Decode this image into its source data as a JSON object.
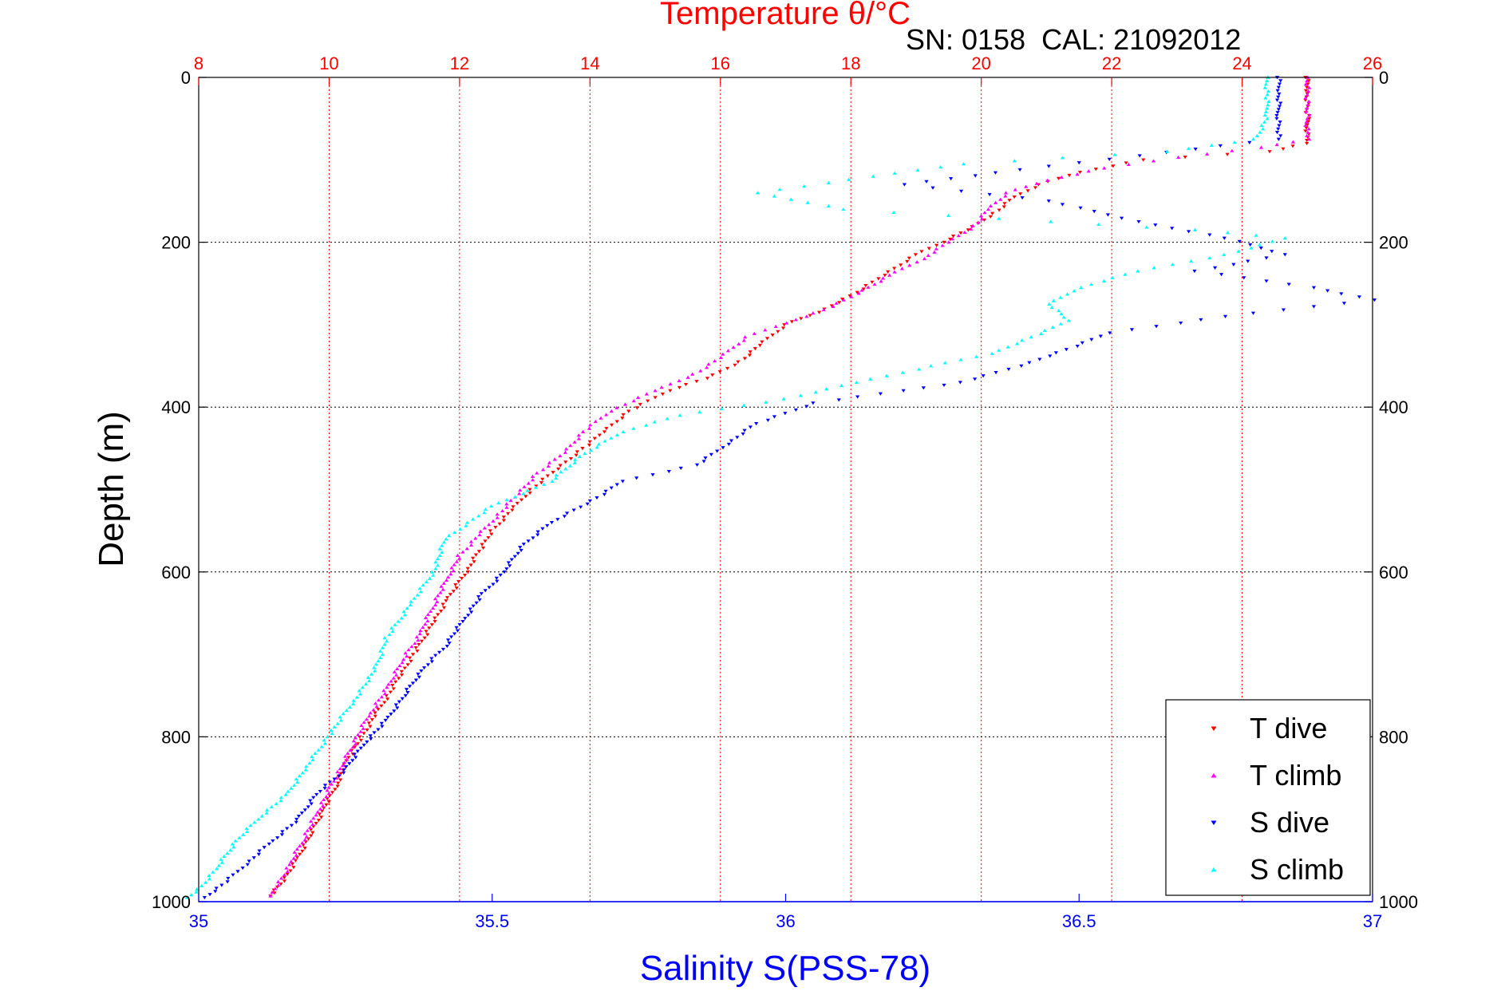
{
  "chart_data": {
    "type": "scatter",
    "top_axis": {
      "title": "Temperature θ/°C",
      "range": [
        8,
        26
      ],
      "ticks": [
        "8",
        "10",
        "12",
        "14",
        "16",
        "18",
        "20",
        "22",
        "24",
        "26"
      ],
      "color": "#ff0000"
    },
    "bottom_axis": {
      "title": "Salinity S(PSS-78)",
      "range": [
        35,
        37
      ],
      "ticks": [
        "35",
        "35.5",
        "36",
        "36.5",
        "37"
      ],
      "color": "#0000ff"
    },
    "y_axis": {
      "title": "Depth (m)",
      "range": [
        0,
        1000
      ],
      "reversed": true,
      "ticks": [
        "0",
        "200",
        "400",
        "600",
        "800",
        "1000"
      ]
    },
    "annotation": "SN: 0158  CAL: 21092012",
    "grid": true,
    "legend_position": "bottom-right",
    "series": [
      {
        "name": "T dive",
        "axis": "top",
        "color": "#ff0000",
        "marker": "triangle-down",
        "points": [
          [
            25.0,
            0
          ],
          [
            25.0,
            20
          ],
          [
            25.0,
            50
          ],
          [
            25.0,
            80
          ],
          [
            24.4,
            90
          ],
          [
            22.5,
            100
          ],
          [
            21.5,
            115
          ],
          [
            20.9,
            130
          ],
          [
            20.5,
            145
          ],
          [
            20.2,
            165
          ],
          [
            19.8,
            185
          ],
          [
            19.4,
            200
          ],
          [
            19.0,
            215
          ],
          [
            18.5,
            240
          ],
          [
            18.0,
            265
          ],
          [
            17.5,
            285
          ],
          [
            17.0,
            300
          ],
          [
            16.6,
            325
          ],
          [
            16.3,
            345
          ],
          [
            15.8,
            365
          ],
          [
            15.2,
            380
          ],
          [
            14.6,
            405
          ],
          [
            14.2,
            430
          ],
          [
            13.9,
            450
          ],
          [
            13.5,
            475
          ],
          [
            13.1,
            500
          ],
          [
            12.8,
            525
          ],
          [
            12.5,
            550
          ],
          [
            12.3,
            575
          ],
          [
            12.1,
            600
          ],
          [
            11.8,
            635
          ],
          [
            11.6,
            660
          ],
          [
            11.3,
            700
          ],
          [
            11.1,
            725
          ],
          [
            10.9,
            750
          ],
          [
            10.7,
            775
          ],
          [
            10.5,
            800
          ],
          [
            10.3,
            825
          ],
          [
            10.1,
            860
          ],
          [
            9.9,
            890
          ],
          [
            9.7,
            920
          ],
          [
            9.5,
            950
          ],
          [
            9.3,
            975
          ],
          [
            9.1,
            993
          ]
        ]
      },
      {
        "name": "T climb",
        "axis": "top",
        "color": "#ff00ff",
        "marker": "triangle-up",
        "points": [
          [
            25.0,
            0
          ],
          [
            25.0,
            25
          ],
          [
            25.0,
            50
          ],
          [
            25.0,
            75
          ],
          [
            24.3,
            85
          ],
          [
            23.0,
            97
          ],
          [
            21.9,
            110
          ],
          [
            21.0,
            125
          ],
          [
            20.4,
            140
          ],
          [
            20.1,
            160
          ],
          [
            19.9,
            180
          ],
          [
            19.5,
            200
          ],
          [
            19.1,
            220
          ],
          [
            18.6,
            240
          ],
          [
            18.1,
            262
          ],
          [
            17.6,
            282
          ],
          [
            17.0,
            298
          ],
          [
            16.4,
            315
          ],
          [
            16.0,
            340
          ],
          [
            15.6,
            360
          ],
          [
            15.0,
            380
          ],
          [
            14.3,
            405
          ],
          [
            13.9,
            430
          ],
          [
            13.6,
            455
          ],
          [
            13.2,
            480
          ],
          [
            12.9,
            505
          ],
          [
            12.6,
            530
          ],
          [
            12.3,
            555
          ],
          [
            12.0,
            580
          ],
          [
            11.8,
            610
          ],
          [
            11.6,
            640
          ],
          [
            11.4,
            675
          ],
          [
            11.1,
            710
          ],
          [
            10.9,
            740
          ],
          [
            10.6,
            775
          ],
          [
            10.4,
            805
          ],
          [
            10.2,
            835
          ],
          [
            10.0,
            865
          ],
          [
            9.8,
            895
          ],
          [
            9.6,
            925
          ],
          [
            9.4,
            955
          ],
          [
            9.2,
            980
          ],
          [
            9.1,
            993
          ]
        ]
      },
      {
        "name": "S dive",
        "axis": "bottom",
        "color": "#0000ff",
        "marker": "triangle-down",
        "points": [
          [
            36.84,
            0
          ],
          [
            36.84,
            20
          ],
          [
            36.84,
            50
          ],
          [
            36.84,
            75
          ],
          [
            36.6,
            95
          ],
          [
            36.4,
            112
          ],
          [
            36.2,
            130
          ],
          [
            36.45,
            150
          ],
          [
            36.6,
            175
          ],
          [
            36.75,
            195
          ],
          [
            36.85,
            215
          ],
          [
            36.7,
            235
          ],
          [
            36.9,
            255
          ],
          [
            37.0,
            270
          ],
          [
            36.75,
            290
          ],
          [
            36.55,
            310
          ],
          [
            36.48,
            330
          ],
          [
            36.4,
            350
          ],
          [
            36.3,
            370
          ],
          [
            36.2,
            380
          ],
          [
            36.05,
            395
          ],
          [
            35.95,
            420
          ],
          [
            35.9,
            445
          ],
          [
            35.85,
            470
          ],
          [
            35.72,
            490
          ],
          [
            35.68,
            510
          ],
          [
            35.6,
            540
          ],
          [
            35.55,
            570
          ],
          [
            35.52,
            600
          ],
          [
            35.48,
            630
          ],
          [
            35.45,
            660
          ],
          [
            35.42,
            690
          ],
          [
            35.38,
            720
          ],
          [
            35.35,
            750
          ],
          [
            35.32,
            780
          ],
          [
            35.28,
            810
          ],
          [
            35.25,
            840
          ],
          [
            35.2,
            870
          ],
          [
            35.17,
            900
          ],
          [
            35.12,
            930
          ],
          [
            35.08,
            955
          ],
          [
            35.04,
            980
          ],
          [
            35.01,
            995
          ]
        ]
      },
      {
        "name": "S climb",
        "axis": "bottom",
        "color": "#00ffff",
        "marker": "triangle-up",
        "points": [
          [
            36.82,
            0
          ],
          [
            36.82,
            25
          ],
          [
            36.82,
            50
          ],
          [
            36.8,
            75
          ],
          [
            36.65,
            90
          ],
          [
            36.3,
            105
          ],
          [
            36.15,
            120
          ],
          [
            35.95,
            140
          ],
          [
            36.1,
            160
          ],
          [
            36.45,
            175
          ],
          [
            36.7,
            185
          ],
          [
            36.85,
            195
          ],
          [
            36.75,
            215
          ],
          [
            36.6,
            235
          ],
          [
            36.5,
            255
          ],
          [
            36.45,
            275
          ],
          [
            36.48,
            295
          ],
          [
            36.42,
            315
          ],
          [
            36.35,
            335
          ],
          [
            36.25,
            350
          ],
          [
            36.12,
            370
          ],
          [
            36.0,
            390
          ],
          [
            35.82,
            410
          ],
          [
            35.72,
            430
          ],
          [
            35.65,
            460
          ],
          [
            35.6,
            490
          ],
          [
            35.5,
            520
          ],
          [
            35.42,
            560
          ],
          [
            35.4,
            600
          ],
          [
            35.36,
            640
          ],
          [
            35.32,
            680
          ],
          [
            35.3,
            720
          ],
          [
            35.26,
            760
          ],
          [
            35.22,
            800
          ],
          [
            35.18,
            840
          ],
          [
            35.15,
            870
          ],
          [
            35.1,
            900
          ],
          [
            35.06,
            930
          ],
          [
            35.03,
            960
          ],
          [
            35.0,
            985
          ],
          [
            34.98,
            995
          ]
        ]
      }
    ]
  }
}
